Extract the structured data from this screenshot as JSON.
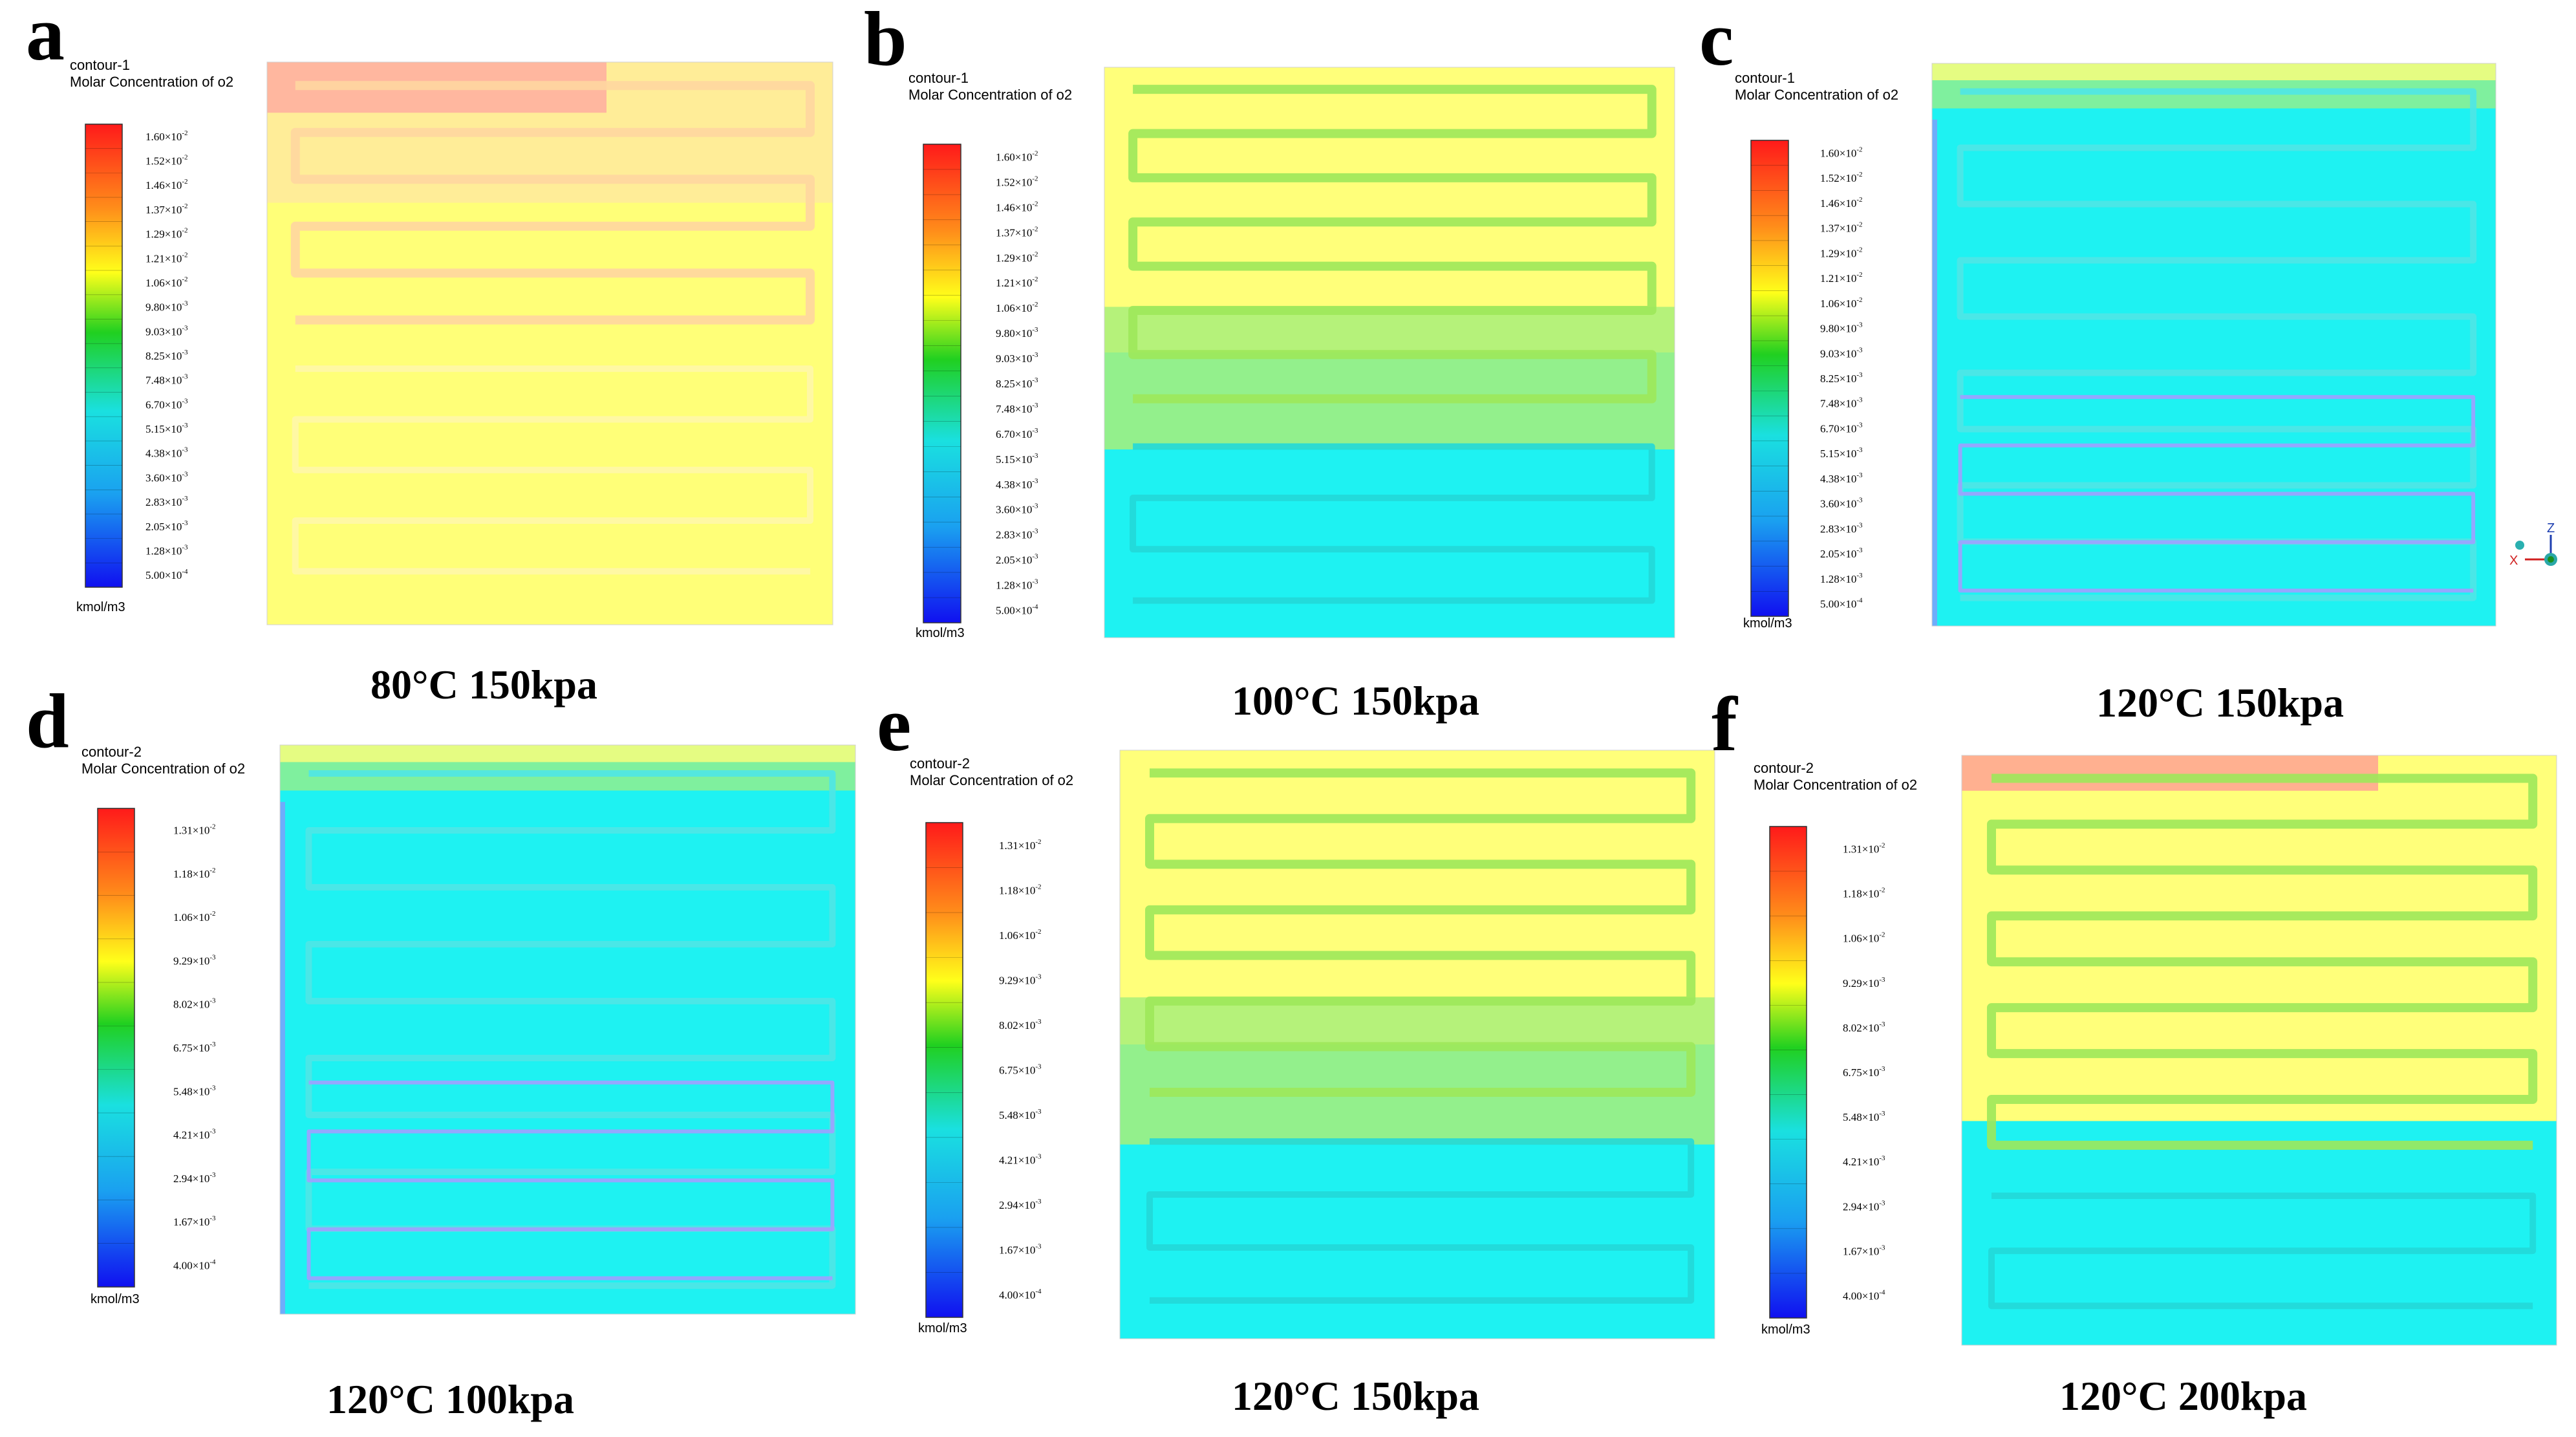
{
  "figure": {
    "unit": "kmol/m3",
    "contour_quantity": "Molar Concentration of o2",
    "scale_1": {
      "ticks": [
        "1.60×10-2",
        "1.52×10-2",
        "1.46×10-2",
        "1.37×10-2",
        "1.29×10-2",
        "1.21×10-2",
        "1.06×10-2",
        "9.80×10-3",
        "9.03×10-3",
        "8.25×10-3",
        "7.48×10-3",
        "6.70×10-3",
        "5.15×10-3",
        "4.38×10-3",
        "3.60×10-3",
        "2.83×10-3",
        "2.05×10-3",
        "1.28×10-3",
        "5.00×10-4"
      ]
    },
    "scale_2": {
      "ticks": [
        "1.31×10-2",
        "1.18×10-2",
        "1.06×10-2",
        "9.29×10-3",
        "8.02×10-3",
        "6.75×10-3",
        "5.48×10-3",
        "4.21×10-3",
        "2.94×10-3",
        "1.67×10-3",
        "4.00×10-4"
      ]
    },
    "panels": [
      {
        "letter": "a",
        "contour_name": "contour-1",
        "caption": "80°C 150kpa",
        "scale": "scale_1",
        "state": "rich"
      },
      {
        "letter": "b",
        "contour_name": "contour-1",
        "caption": "100°C 150kpa",
        "scale": "scale_1",
        "state": "mixed"
      },
      {
        "letter": "c",
        "contour_name": "contour-1",
        "caption": "120°C 150kpa",
        "scale": "scale_1",
        "state": "depleted"
      },
      {
        "letter": "d",
        "contour_name": "contour-2",
        "caption": "120°C 100kpa",
        "scale": "scale_2",
        "state": "depleted"
      },
      {
        "letter": "e",
        "contour_name": "contour-2",
        "caption": "120°C 150kpa",
        "scale": "scale_2",
        "state": "mixed"
      },
      {
        "letter": "f",
        "contour_name": "contour-2",
        "caption": "120°C 200kpa",
        "scale": "scale_2",
        "state": "mixed-rich"
      }
    ],
    "axis_triad": {
      "z": "Z",
      "x": "X"
    }
  }
}
